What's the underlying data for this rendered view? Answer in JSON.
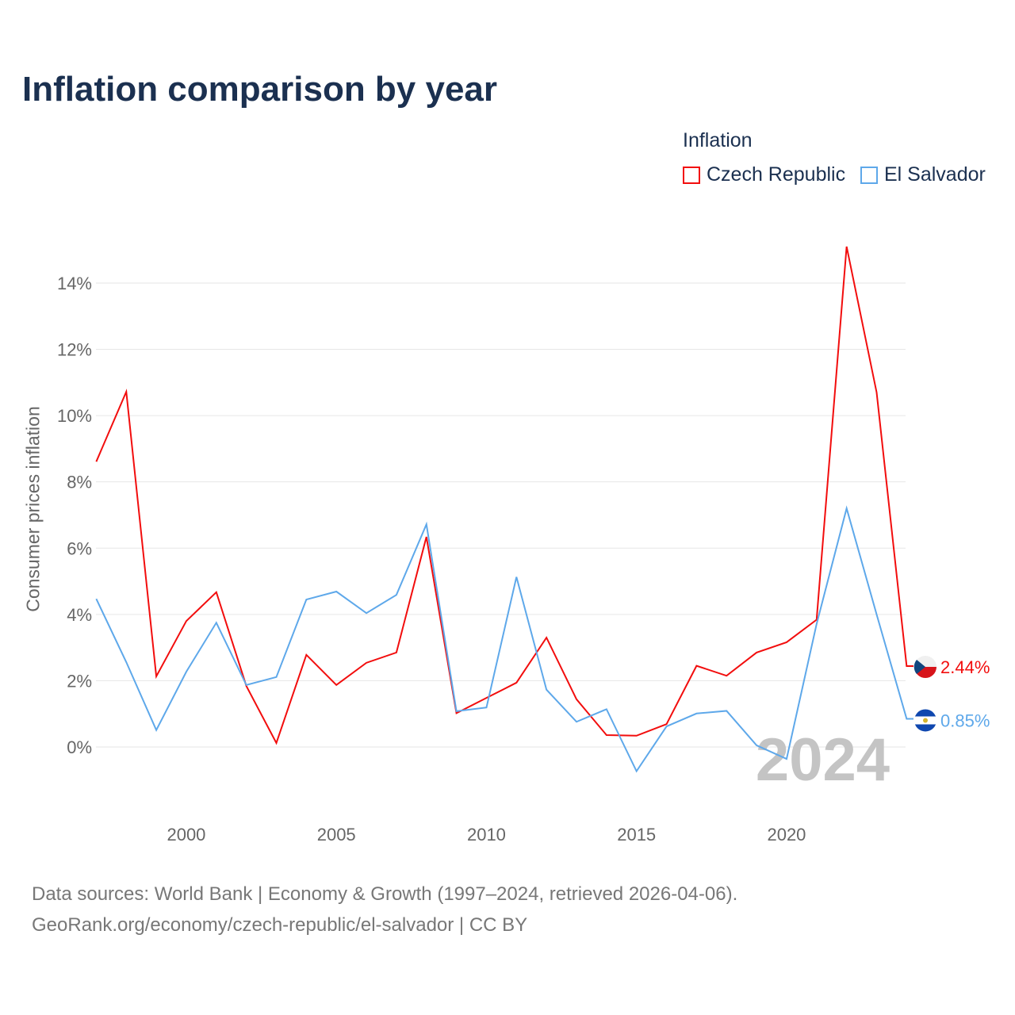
{
  "chart_data": {
    "type": "line",
    "title": "Inflation comparison by year",
    "legend_title": "Inflation",
    "legend_placement": "top-right",
    "xlabel": "",
    "ylabel": "Consumer prices inflation",
    "xlim": [
      1997,
      2024
    ],
    "ylim": [
      -2,
      15.5
    ],
    "x_ticks": [
      2000,
      2005,
      2010,
      2015,
      2020
    ],
    "y_ticks": [
      {
        "v": 0,
        "label": "0%"
      },
      {
        "v": 2,
        "label": "2%"
      },
      {
        "v": 4,
        "label": "4%"
      },
      {
        "v": 6,
        "label": "6%"
      },
      {
        "v": 8,
        "label": "8%"
      },
      {
        "v": 10,
        "label": "10%"
      },
      {
        "v": 12,
        "label": "12%"
      },
      {
        "v": 14,
        "label": "14%"
      }
    ],
    "grid": true,
    "x": [
      1997,
      1998,
      1999,
      2000,
      2001,
      2002,
      2003,
      2004,
      2005,
      2006,
      2007,
      2008,
      2009,
      2010,
      2011,
      2012,
      2013,
      2014,
      2015,
      2016,
      2017,
      2018,
      2019,
      2020,
      2021,
      2022,
      2023,
      2024
    ],
    "series": [
      {
        "name": "Czech Republic",
        "color": "#f20d0d",
        "end_label": "2.44%",
        "values": [
          8.61,
          10.72,
          2.13,
          3.8,
          4.67,
          1.84,
          0.12,
          2.78,
          1.87,
          2.54,
          2.85,
          6.34,
          1.02,
          1.48,
          1.94,
          3.3,
          1.44,
          0.36,
          0.34,
          0.69,
          2.45,
          2.15,
          2.85,
          3.16,
          3.84,
          15.1,
          10.7,
          2.44
        ]
      },
      {
        "name": "El Salvador",
        "color": "#5ea8ea",
        "end_label": "0.85%",
        "values": [
          4.47,
          2.56,
          0.51,
          2.27,
          3.75,
          1.87,
          2.11,
          4.45,
          4.69,
          4.04,
          4.59,
          6.72,
          1.08,
          1.19,
          5.13,
          1.73,
          0.76,
          1.14,
          -0.73,
          0.62,
          1.01,
          1.09,
          0.05,
          -0.36,
          3.71,
          7.2,
          4.0,
          0.85
        ]
      }
    ],
    "annotation": "2024"
  },
  "source": {
    "line1": "Data sources: World Bank | Economy & Growth (1997–2024, retrieved 2026-04-06).",
    "line2": "GeoRank.org/economy/czech-republic/el-salvador | CC BY"
  }
}
